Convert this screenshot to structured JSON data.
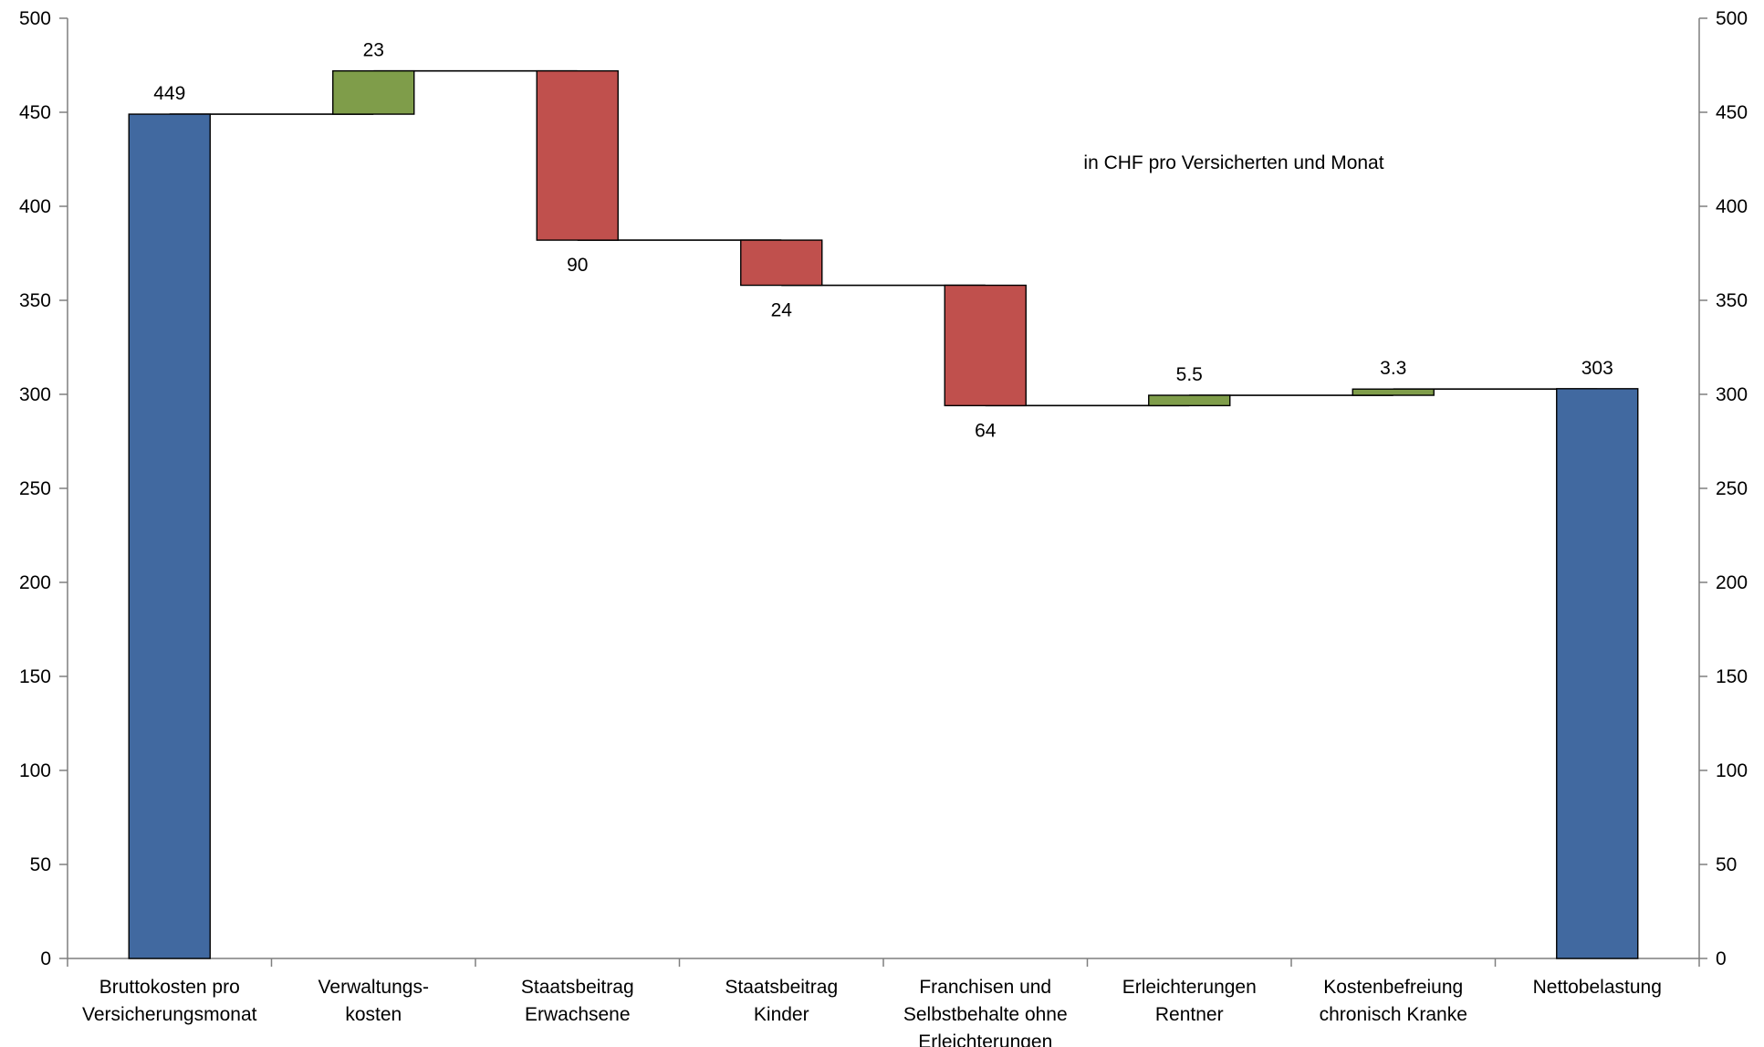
{
  "chart_data": {
    "type": "waterfall",
    "annotation": "in CHF pro Versicherten und Monat",
    "ylim": [
      0,
      500
    ],
    "yticks": [
      0,
      50,
      100,
      150,
      200,
      250,
      300,
      350,
      400,
      450,
      500
    ],
    "secondary_y_axis": true,
    "grid": false,
    "colors": {
      "total": "#4169A0",
      "increase": "#7F9D4A",
      "decrease": "#C0504D",
      "connector": "#000000"
    },
    "steps": [
      {
        "category": [
          "Bruttokosten pro",
          "Versicherungsmonat"
        ],
        "kind": "total",
        "base": 0,
        "top": 449,
        "label": "449",
        "label_pos": "above"
      },
      {
        "category": [
          "Verwaltungs-",
          "kosten"
        ],
        "kind": "increase",
        "base": 449,
        "top": 472,
        "label": "23",
        "label_pos": "above"
      },
      {
        "category": [
          "Staatsbeitrag",
          "Erwachsene"
        ],
        "kind": "decrease",
        "base": 382,
        "top": 472,
        "label": "90",
        "label_pos": "below"
      },
      {
        "category": [
          "Staatsbeitrag",
          "Kinder"
        ],
        "kind": "decrease",
        "base": 358,
        "top": 382,
        "label": "24",
        "label_pos": "below"
      },
      {
        "category": [
          "Franchisen und",
          "Selbstbehalte ohne",
          "Erleichterungen"
        ],
        "kind": "decrease",
        "base": 294,
        "top": 358,
        "label": "64",
        "label_pos": "below"
      },
      {
        "category": [
          "Erleichterungen",
          "Rentner"
        ],
        "kind": "increase",
        "base": 294,
        "top": 299.5,
        "label": "5.5",
        "label_pos": "above"
      },
      {
        "category": [
          "Kostenbefreiung",
          "chronisch Kranke"
        ],
        "kind": "increase",
        "base": 299.5,
        "top": 302.8,
        "label": "3.3",
        "label_pos": "above"
      },
      {
        "category": [
          "Nettobelastung"
        ],
        "kind": "total",
        "base": 0,
        "top": 303,
        "label": "303",
        "label_pos": "above"
      }
    ]
  }
}
